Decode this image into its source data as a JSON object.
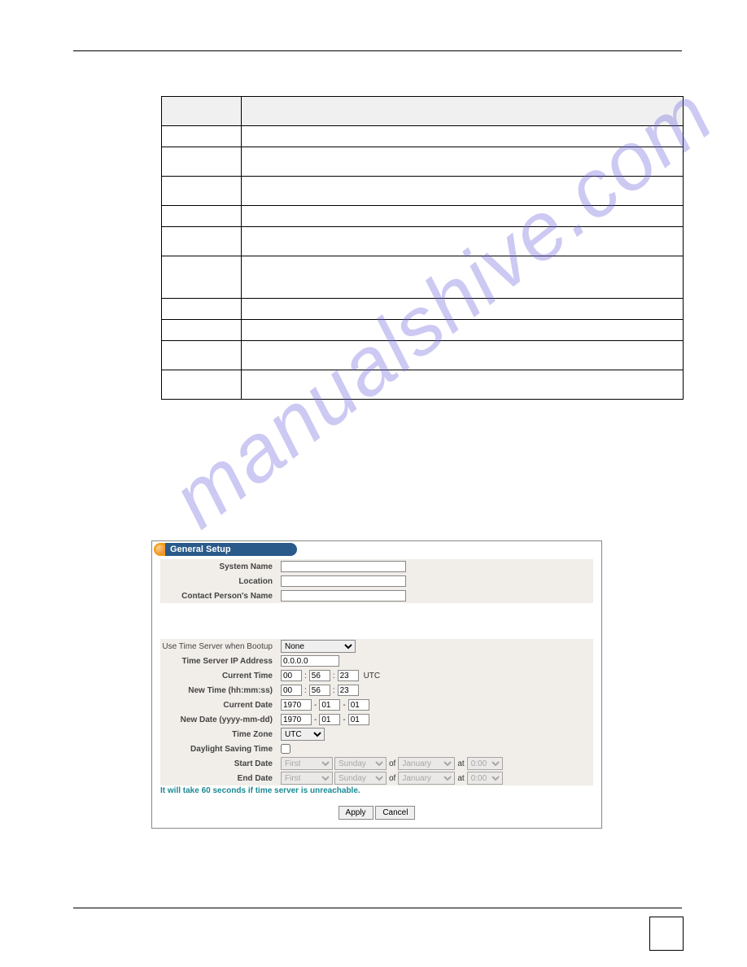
{
  "watermark_text": "manualshive.com",
  "info_table": {
    "header": [
      "",
      ""
    ],
    "row_heights": [
      "h-small",
      "h-med",
      "h-med",
      "h-small",
      "h-med",
      "h-large",
      "h-small",
      "h-small",
      "h-med",
      "h-med"
    ]
  },
  "panel": {
    "title": "General Setup",
    "groups": {
      "system": {
        "system_name": {
          "label": "System Name",
          "value": ""
        },
        "location": {
          "label": "Location",
          "value": ""
        },
        "contact": {
          "label": "Contact Person's Name",
          "value": ""
        }
      },
      "time": {
        "use_time_server": {
          "label": "Use Time Server when Bootup",
          "value": "None"
        },
        "time_server_ip": {
          "label": "Time Server IP Address",
          "value": "0.0.0.0"
        },
        "current_time": {
          "label": "Current Time",
          "h": "00",
          "m": "56",
          "s": "23",
          "suffix": "UTC"
        },
        "new_time": {
          "label": "New Time (hh:mm:ss)",
          "h": "00",
          "m": "56",
          "s": "23"
        },
        "current_date": {
          "label": "Current Date",
          "y": "1970",
          "mo": "01",
          "d": "01"
        },
        "new_date": {
          "label": "New Date (yyyy-mm-dd)",
          "y": "1970",
          "mo": "01",
          "d": "01"
        },
        "timezone": {
          "label": "Time Zone",
          "value": "UTC"
        },
        "dst": {
          "label": "Daylight Saving Time",
          "checked": false
        },
        "start_date": {
          "label": "Start Date",
          "ord": "First",
          "day": "Sunday",
          "of": "of",
          "mon": "January",
          "at": "at",
          "time": "0:00"
        },
        "end_date": {
          "label": "End Date",
          "ord": "First",
          "day": "Sunday",
          "of": "of",
          "mon": "January",
          "at": "at",
          "time": "0:00"
        }
      }
    },
    "note": "It will take 60 seconds if time server is unreachable.",
    "buttons": {
      "apply": "Apply",
      "cancel": "Cancel"
    }
  }
}
